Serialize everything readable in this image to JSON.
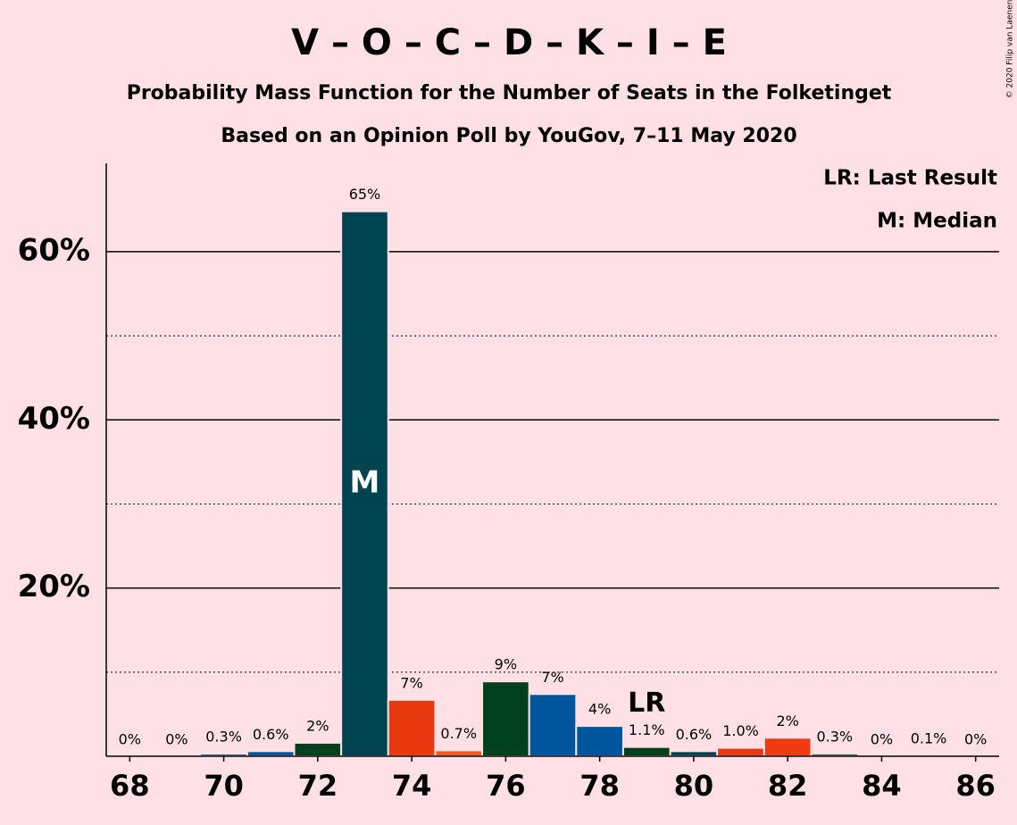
{
  "chart_data": {
    "type": "bar",
    "title": "V – O – C – D – K – I – E",
    "subtitle": "Probability Mass Function for the Number of Seats in the Folketinget",
    "subtitle2": "Based on an Opinion Poll by YouGov, 7–11 May 2020",
    "copyright": "© 2020 Filip van Laenen",
    "x": [
      68,
      69,
      70,
      71,
      72,
      73,
      74,
      75,
      76,
      77,
      78,
      79,
      80,
      81,
      82,
      83,
      84,
      85,
      86
    ],
    "values": [
      0,
      0,
      0.3,
      0.6,
      1.6,
      64.8,
      6.7,
      0.7,
      8.9,
      7.4,
      3.6,
      1.1,
      0.6,
      1.0,
      2.2,
      0.3,
      0,
      0.1,
      0
    ],
    "value_labels": [
      "0%",
      "0%",
      "0.3%",
      "0.6%",
      "2%",
      "65%",
      "7%",
      "0.7%",
      "9%",
      "7%",
      "4%",
      "1.1%",
      "0.6%",
      "1.0%",
      "2%",
      "0.3%",
      "0%",
      "0.1%",
      "0%"
    ],
    "colors": [
      "#00446e",
      "#00446e",
      "#00446e",
      "#00569c",
      "#00401f",
      "#00444f",
      "#e8380d",
      "#f05a1e",
      "#00401f",
      "#00569c",
      "#00569c",
      "#00401f",
      "#00444f",
      "#e8380d",
      "#f03a12",
      "#00401f",
      "#00444f",
      "#00569c",
      "#00401f"
    ],
    "xlim": [
      67.5,
      86.5
    ],
    "xticks": [
      68,
      70,
      72,
      74,
      76,
      78,
      80,
      82,
      84,
      86
    ],
    "ylim": [
      0,
      70.5
    ],
    "yticks": [
      {
        "value": 20,
        "label": "20%"
      },
      {
        "value": 40,
        "label": "40%"
      },
      {
        "value": 60,
        "label": "60%"
      }
    ],
    "minor_yticks": [
      10,
      30,
      50
    ],
    "grid": true,
    "median_x": 73,
    "median_label": "M",
    "last_result_x": 79,
    "last_result_label": "LR",
    "legend": [
      "LR: Last Result",
      "M: Median"
    ]
  }
}
